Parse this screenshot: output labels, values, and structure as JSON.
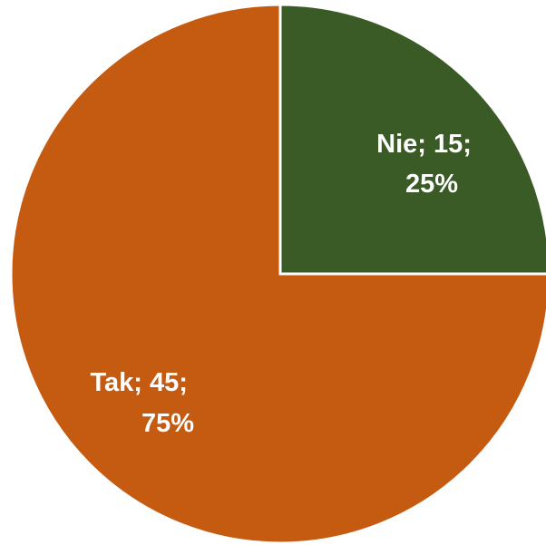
{
  "chart_data": {
    "type": "pie",
    "slices": [
      {
        "label": "Nie",
        "value": 15,
        "percent": "25%",
        "color": "#3a5a26"
      },
      {
        "label": "Tak",
        "value": 45,
        "percent": "75%",
        "color": "#c55a11"
      }
    ],
    "data_labels": [
      {
        "line1": "Nie; 15;",
        "line2": "25%"
      },
      {
        "line1": "Tak; 45;",
        "line2": "75%"
      }
    ],
    "start_angle_deg": 0,
    "direction": "clockwise",
    "legend": "none"
  }
}
